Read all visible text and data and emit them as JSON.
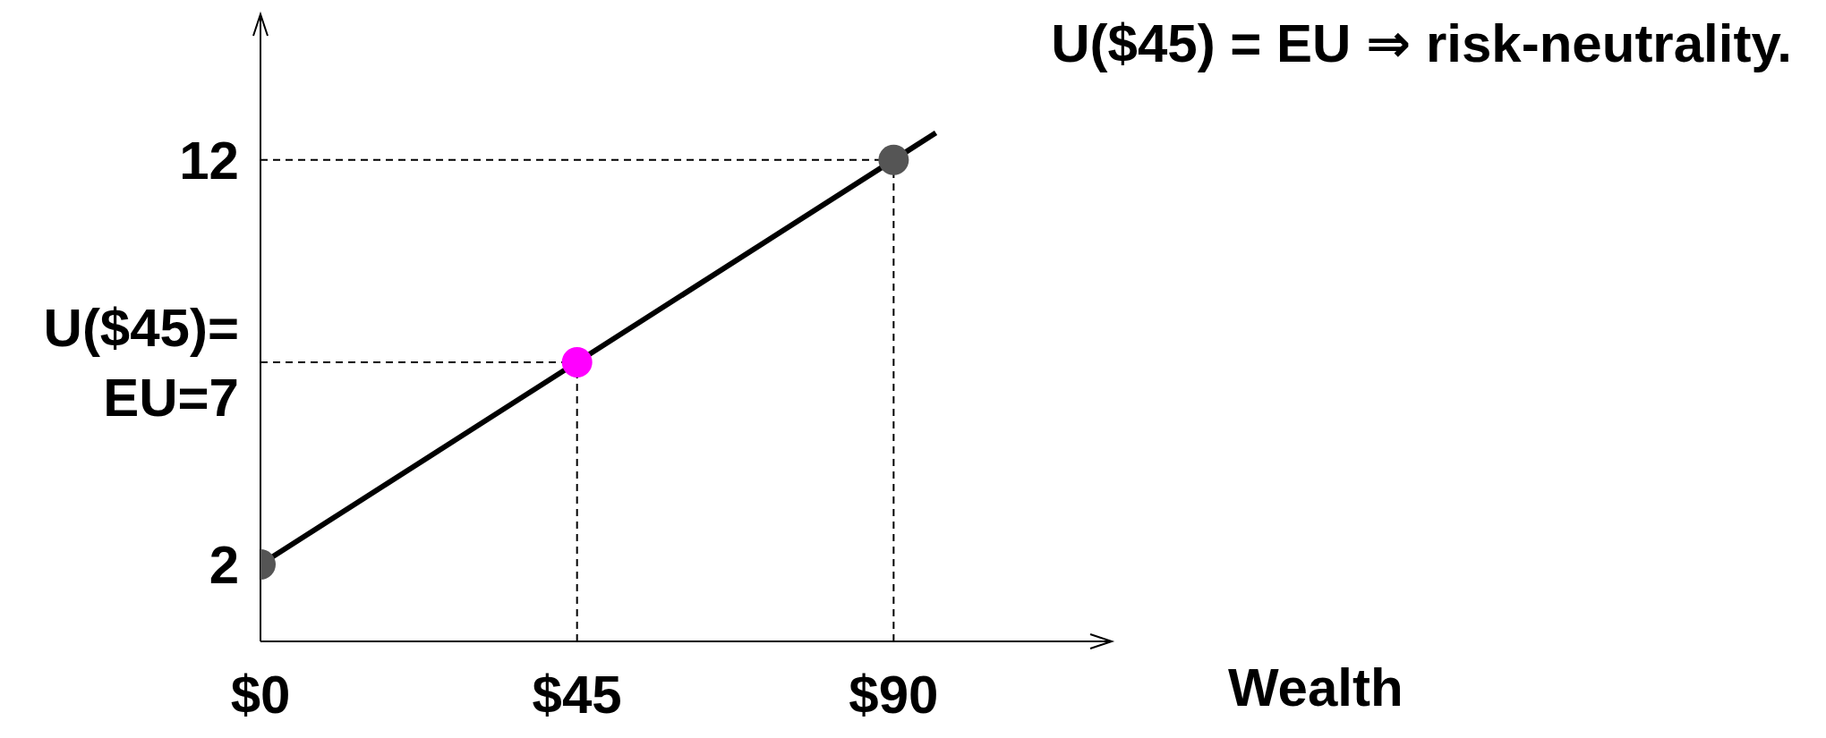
{
  "chart_data": {
    "type": "line",
    "annotations": [
      "U($45) = EU ⇒ risk-neutrality."
    ],
    "xlabel": "Wealth",
    "xlim": [
      0,
      121
    ],
    "xticks": [
      {
        "value": 0,
        "label": "$0"
      },
      {
        "value": 45,
        "label": "$45"
      },
      {
        "value": 90,
        "label": "$90"
      }
    ],
    "ylim": [
      0.1,
      15.6
    ],
    "yticks": [
      2,
      {
        "value": 7,
        "label": "U($45)=\nEU=7"
      },
      12
    ],
    "grid": false,
    "series": [
      {
        "color": "#000000",
        "marker": "none",
        "x": [
          0,
          96
        ],
        "values": [
          2,
          12.67
        ]
      },
      {
        "type": "scatter",
        "color": "#555555",
        "marker": "circle",
        "x": [
          0,
          90
        ],
        "values": [
          2,
          12
        ]
      },
      {
        "type": "scatter",
        "color": "#ff00ff",
        "marker": "circle",
        "x": [
          45
        ],
        "values": [
          7
        ]
      }
    ],
    "ref_lines": [
      {
        "axis": "y",
        "value": 12,
        "color": "#000000",
        "line_style": "dashed"
      },
      {
        "axis": "x",
        "value": 90,
        "color": "#000000",
        "line_style": "dashed"
      },
      {
        "axis": "y",
        "value": 7,
        "color": "#000000",
        "line_style": "dashed"
      },
      {
        "axis": "x",
        "value": 45,
        "color": "#000000",
        "line_style": "dashed"
      }
    ]
  }
}
